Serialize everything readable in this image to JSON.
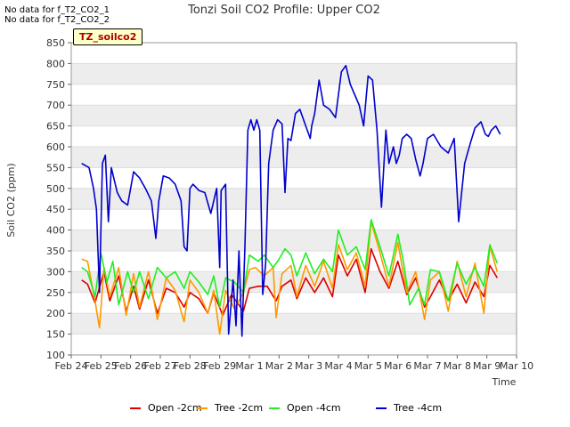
{
  "notes": [
    "No data for f_T2_CO2_1",
    "No data for f_T2_CO2_2"
  ],
  "badge": "TZ_soilco2",
  "colors": {
    "open_2cm": "#dd0000",
    "tree_2cm": "#ff9900",
    "open_4cm": "#22ee22",
    "tree_4cm": "#0000cc",
    "band": "#ededed"
  },
  "chart_data": {
    "type": "line",
    "title": "Tonzi Soil CO2 Profile: Upper CO2",
    "xlabel": "Time",
    "ylabel": "Soil CO2 (ppm)",
    "ylim": [
      100,
      850
    ],
    "yticks": [
      100,
      150,
      200,
      250,
      300,
      350,
      400,
      450,
      500,
      550,
      600,
      650,
      700,
      750,
      800,
      850
    ],
    "xlim": [
      0,
      15
    ],
    "xtick_labels": [
      "Feb 24",
      "Feb 25",
      "Feb 26",
      "Feb 27",
      "Feb 28",
      "Feb 29",
      "Mar 1",
      "Mar 2",
      "Mar 3",
      "Mar 4",
      "Mar 5",
      "Mar 6",
      "Mar 7",
      "Mar 8",
      "Mar 9",
      "Mar 10"
    ],
    "legend_position": "bottom",
    "series": [
      {
        "name": "Open -2cm",
        "x": [
          0.35,
          0.55,
          0.8,
          1.1,
          1.3,
          1.6,
          1.85,
          2.1,
          2.3,
          2.6,
          2.9,
          3.2,
          3.5,
          3.8,
          4.0,
          4.3,
          4.6,
          4.8,
          5.1,
          5.4,
          5.8,
          6.0,
          6.3,
          6.6,
          6.9,
          7.1,
          7.4,
          7.6,
          7.9,
          8.2,
          8.5,
          8.8,
          9.0,
          9.3,
          9.6,
          9.9,
          10.1,
          10.4,
          10.7,
          11.0,
          11.3,
          11.6,
          11.9,
          12.1,
          12.4,
          12.7,
          13.0,
          13.3,
          13.6,
          13.9,
          14.1,
          14.35
        ],
        "values": [
          280,
          270,
          225,
          300,
          230,
          290,
          205,
          265,
          210,
          280,
          200,
          260,
          250,
          215,
          250,
          235,
          200,
          250,
          195,
          245,
          205,
          260,
          265,
          265,
          230,
          265,
          280,
          235,
          285,
          250,
          285,
          240,
          340,
          290,
          330,
          250,
          355,
          300,
          260,
          325,
          245,
          285,
          215,
          240,
          280,
          230,
          270,
          225,
          275,
          240,
          315,
          285
        ]
      },
      {
        "name": "Tree -2cm",
        "x": [
          0.35,
          0.55,
          0.8,
          0.95,
          1.1,
          1.3,
          1.6,
          1.85,
          2.1,
          2.3,
          2.6,
          2.9,
          3.2,
          3.5,
          3.8,
          4.0,
          4.3,
          4.6,
          4.8,
          5.0,
          5.2,
          5.5,
          5.8,
          6.0,
          6.2,
          6.5,
          6.8,
          6.9,
          7.1,
          7.4,
          7.6,
          7.9,
          8.2,
          8.5,
          8.8,
          9.0,
          9.3,
          9.6,
          9.9,
          10.1,
          10.4,
          10.7,
          11.0,
          11.3,
          11.6,
          11.9,
          12.1,
          12.4,
          12.7,
          13.0,
          13.3,
          13.6,
          13.9,
          14.1,
          14.35
        ],
        "values": [
          330,
          325,
          230,
          165,
          310,
          240,
          310,
          195,
          295,
          215,
          300,
          185,
          285,
          255,
          180,
          280,
          250,
          200,
          255,
          150,
          255,
          210,
          250,
          305,
          310,
          290,
          310,
          190,
          295,
          315,
          240,
          315,
          265,
          325,
          260,
          365,
          305,
          345,
          265,
          420,
          345,
          265,
          370,
          250,
          300,
          185,
          280,
          300,
          205,
          325,
          240,
          320,
          200,
          360,
          300
        ]
      },
      {
        "name": "Open -4cm",
        "x": [
          0.35,
          0.55,
          0.8,
          1.0,
          1.2,
          1.4,
          1.6,
          1.9,
          2.1,
          2.3,
          2.6,
          2.9,
          3.2,
          3.5,
          3.8,
          4.0,
          4.3,
          4.6,
          4.8,
          5.0,
          5.2,
          5.5,
          5.8,
          6.0,
          6.3,
          6.5,
          6.8,
          7.0,
          7.2,
          7.4,
          7.6,
          7.9,
          8.2,
          8.5,
          8.8,
          9.0,
          9.3,
          9.6,
          9.9,
          10.1,
          10.4,
          10.7,
          11.0,
          11.2,
          11.4,
          11.7,
          11.9,
          12.1,
          12.4,
          12.7,
          13.0,
          13.3,
          13.6,
          13.9,
          14.1,
          14.35
        ],
        "values": [
          310,
          300,
          240,
          345,
          275,
          325,
          220,
          300,
          250,
          300,
          235,
          310,
          285,
          300,
          260,
          300,
          275,
          245,
          290,
          215,
          285,
          275,
          250,
          340,
          325,
          340,
          310,
          330,
          355,
          340,
          290,
          345,
          295,
          330,
          300,
          400,
          340,
          360,
          305,
          425,
          360,
          290,
          390,
          320,
          220,
          260,
          220,
          305,
          300,
          230,
          320,
          270,
          310,
          265,
          365,
          320
        ]
      },
      {
        "name": "Tree -4cm",
        "x": [
          0.35,
          0.6,
          0.75,
          0.85,
          0.95,
          1.05,
          1.15,
          1.25,
          1.35,
          1.45,
          1.55,
          1.7,
          1.9,
          2.1,
          2.3,
          2.5,
          2.7,
          2.85,
          2.95,
          3.1,
          3.3,
          3.5,
          3.7,
          3.8,
          3.9,
          4.0,
          4.1,
          4.3,
          4.5,
          4.7,
          4.9,
          5.0,
          5.05,
          5.2,
          5.3,
          5.45,
          5.55,
          5.65,
          5.75,
          5.85,
          5.95,
          6.05,
          6.15,
          6.25,
          6.35,
          6.45,
          6.55,
          6.65,
          6.8,
          6.95,
          7.1,
          7.2,
          7.3,
          7.4,
          7.55,
          7.7,
          7.9,
          8.0,
          8.05,
          8.1,
          8.2,
          8.35,
          8.5,
          8.7,
          8.9,
          9.1,
          9.25,
          9.4,
          9.55,
          9.7,
          9.85,
          10.0,
          10.15,
          10.3,
          10.45,
          10.6,
          10.7,
          10.85,
          10.95,
          11.05,
          11.15,
          11.3,
          11.45,
          11.6,
          11.75,
          11.85,
          12.0,
          12.2,
          12.45,
          12.7,
          12.9,
          13.05,
          13.25,
          13.45,
          13.6,
          13.8,
          13.95,
          14.05,
          14.15,
          14.3,
          14.45
        ],
        "values": [
          560,
          550,
          500,
          450,
          250,
          560,
          580,
          420,
          550,
          520,
          490,
          470,
          460,
          540,
          525,
          500,
          470,
          380,
          470,
          530,
          525,
          510,
          470,
          360,
          350,
          500,
          510,
          495,
          490,
          440,
          500,
          310,
          495,
          510,
          150,
          280,
          170,
          350,
          145,
          360,
          640,
          665,
          640,
          665,
          640,
          245,
          320,
          560,
          640,
          665,
          655,
          490,
          620,
          615,
          680,
          690,
          650,
          630,
          620,
          650,
          680,
          760,
          700,
          690,
          670,
          780,
          795,
          750,
          725,
          700,
          650,
          770,
          760,
          640,
          455,
          640,
          560,
          600,
          560,
          580,
          620,
          630,
          620,
          570,
          530,
          560,
          620,
          630,
          600,
          585,
          620,
          420,
          560,
          610,
          645,
          660,
          630,
          625,
          640,
          650,
          630
        ]
      }
    ]
  }
}
